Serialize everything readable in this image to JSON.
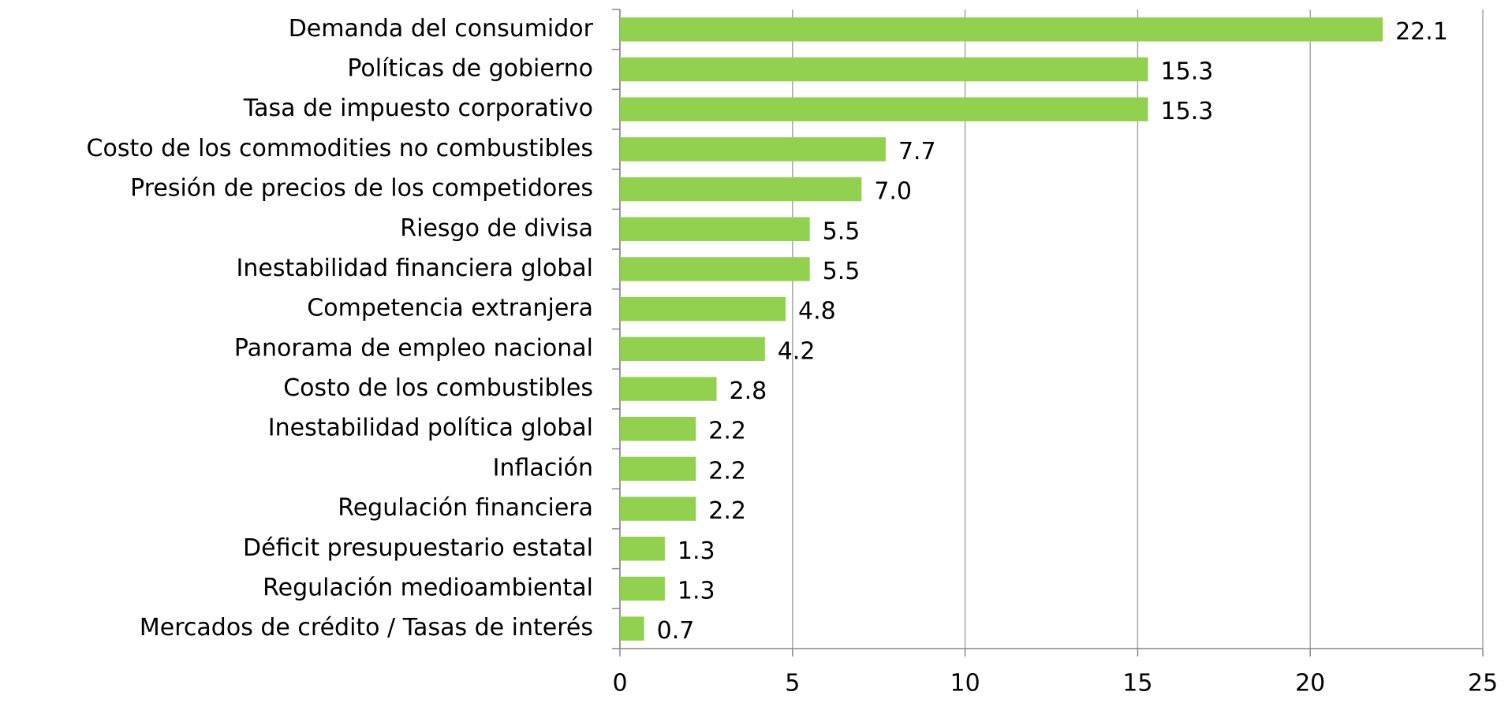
{
  "chart_data": {
    "type": "barh",
    "categories": [
      "Demanda del consumidor",
      "Políticas de gobierno",
      "Tasa de impuesto corporativo",
      "Costo de los commodities no combustibles",
      "Presión de precios de los competidores",
      "Riesgo de divisa",
      "Inestabilidad financiera global",
      "Competencia extranjera",
      "Panorama de empleo nacional",
      "Costo de los combustibles",
      "Inestabilidad política global",
      "Inflación",
      "Regulación financiera",
      "Déficit presupuestario estatal",
      "Regulación medioambiental",
      "Mercados de crédito / Tasas de interés"
    ],
    "values": [
      22.1,
      15.3,
      15.3,
      7.7,
      7,
      5.5,
      5.5,
      4.8,
      4.2,
      2.8,
      2.2,
      2.2,
      2.2,
      1.3,
      1.3,
      0.7
    ],
    "value_labels": [
      "22.1",
      "15.3",
      "15.3",
      "7.7",
      "7.0",
      "5.5",
      "5.5",
      "4.8",
      "4.2",
      "2.8",
      "2.2",
      "2.2",
      "2.2",
      "1.3",
      "1.3",
      "0.7"
    ],
    "color": "#92d050",
    "xlim": [
      0,
      25
    ],
    "xticks": [
      0,
      5,
      10,
      15,
      20,
      25
    ],
    "grid": true
  }
}
